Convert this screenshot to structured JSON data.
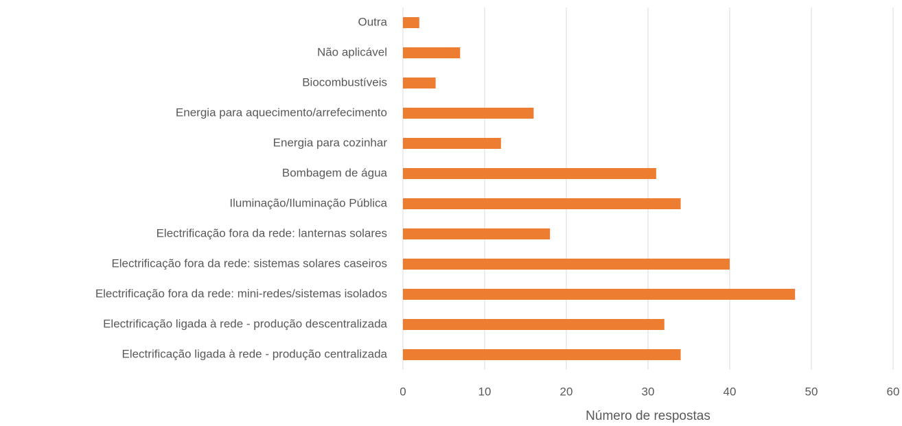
{
  "chart_data": {
    "type": "barh",
    "categories": [
      "Outra",
      "Não aplicável",
      "Biocombustíveis",
      "Energia para aquecimento/arrefecimento",
      "Energia para cozinhar",
      "Bombagem de água",
      "Iluminação/Iluminação Pública",
      "Electrificação fora da rede: lanternas solares",
      "Electrificação fora da rede: sistemas solares caseiros",
      "Electrificação fora da rede: mini-redes/sistemas isolados",
      "Electrificação ligada à rede - produção descentralizada",
      "Electrificação ligada à rede - produção centralizada"
    ],
    "values": [
      2,
      7,
      4,
      16,
      12,
      31,
      34,
      18,
      40,
      48,
      32,
      34
    ],
    "color": "#ed7d31",
    "xlabel": "Número de respostas",
    "xlim": [
      0,
      60
    ],
    "xticks": [
      0,
      10,
      20,
      30,
      40,
      50,
      60
    ],
    "grid": true
  }
}
